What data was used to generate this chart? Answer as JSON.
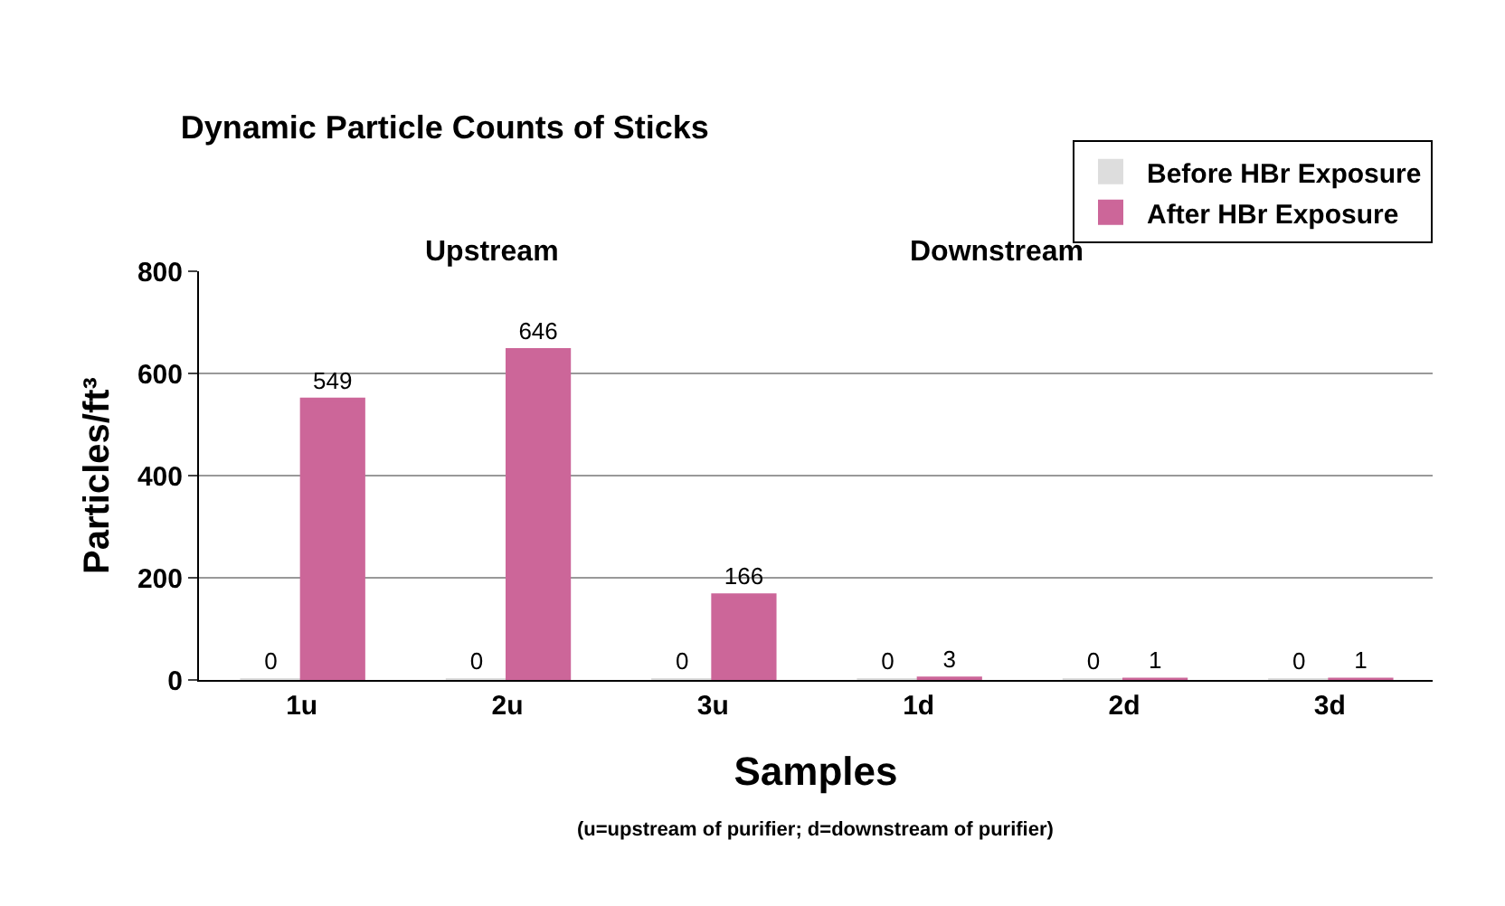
{
  "chart_data": {
    "type": "bar",
    "title": "Dynamic Particle Counts of Sticks",
    "xlabel": "Samples",
    "ylabel": "Particles/ft³",
    "categories": [
      "1u",
      "2u",
      "3u",
      "1d",
      "2d",
      "3d"
    ],
    "series": [
      {
        "name": "Before HBr Exposure",
        "color": "#dddddd",
        "values": [
          0,
          0,
          0,
          0,
          0,
          0
        ]
      },
      {
        "name": "After HBr Exposure",
        "color": "#cc6699",
        "values": [
          549,
          646,
          166,
          3,
          1,
          1
        ]
      }
    ],
    "ylim": [
      0,
      800
    ],
    "yticks": [
      0,
      200,
      400,
      600,
      800
    ],
    "grid": "y",
    "legend": "top right",
    "data_labels": true,
    "annotations": [
      "Upstream",
      "Downstream",
      "(u=upstream of purifier; d=downstream of purifier)"
    ]
  }
}
